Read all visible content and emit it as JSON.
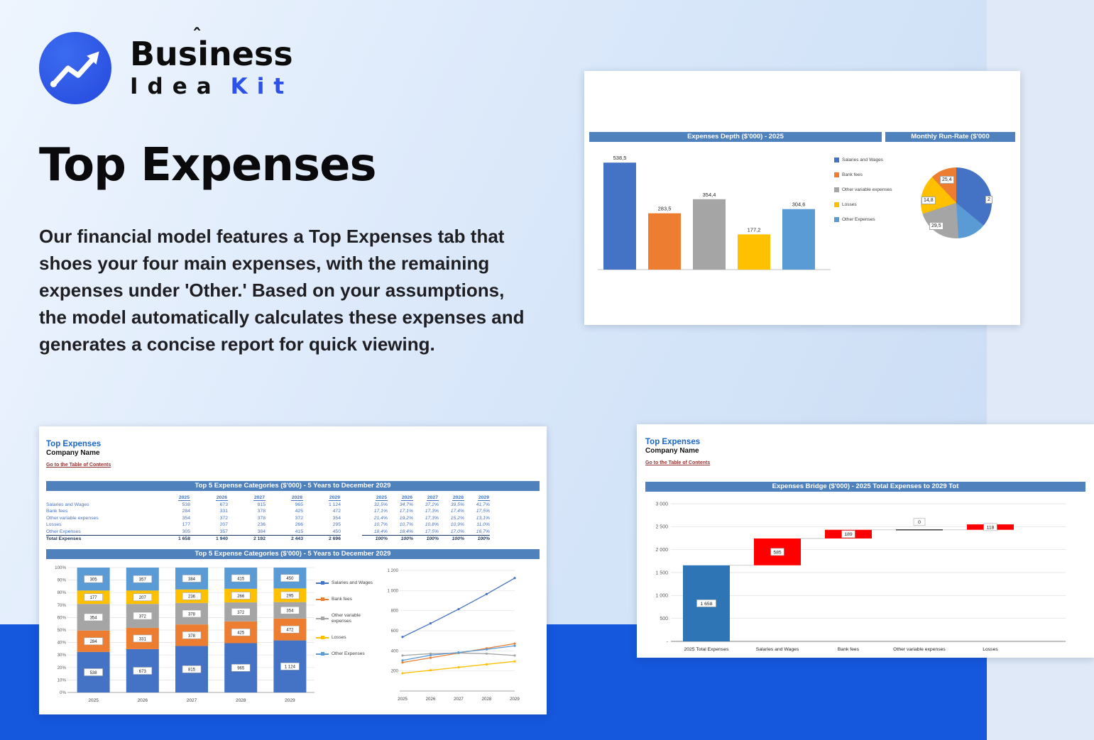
{
  "page": {
    "footer_band_color": "#1557dd",
    "accent_color": "#2d52e8",
    "header_band_color": "#4f81bd",
    "sheet_title_color": "#1a66c9",
    "link_color": "#943634"
  },
  "logo": {
    "word1": "Business",
    "caret": "ˆ",
    "word2": "Idea",
    "word3": "Kit"
  },
  "hero": {
    "title": "Top Expenses",
    "description": "Our financial model features a Top Expenses tab that shoes your four main expenses, with the remaining expenses under 'Other.' Based on your assumptions, the model automatically calculates these expenses and generates a concise report for quick viewing."
  },
  "sheet_card": {
    "sheet_title": "Top Expenses",
    "company": "Company Name",
    "toc_link": "Go to the Table of Contents"
  },
  "bridge_card": {
    "sheet_title": "Top Expenses",
    "company": "Company Name",
    "toc_link": "Go to the Table of Contents"
  },
  "chart_data": [
    {
      "id": "expenses_depth",
      "type": "bar",
      "title": "Expenses Depth ($'000) - 2025",
      "categories": [
        "Salaries and Wages",
        "Bank fees",
        "Other variable expenses",
        "Losses",
        "Other Expenses"
      ],
      "values": [
        538.5,
        283.5,
        354.4,
        177.2,
        304.6
      ],
      "value_labels": [
        "538,5",
        "283,5",
        "354,4",
        "177,2",
        "304,6"
      ],
      "colors": [
        "#4472c4",
        "#ed7d31",
        "#a5a5a5",
        "#ffc000",
        "#5b9bd5"
      ],
      "ylim": [
        0,
        600
      ],
      "grid": false,
      "legend_position": "right"
    },
    {
      "id": "monthly_run_rate",
      "type": "pie",
      "title": "Monthly Run-Rate ($'000",
      "visible_labels": [
        "25,4",
        "14,8",
        "29,5",
        "2"
      ],
      "slices_pct": [
        36,
        13,
        21,
        18,
        12
      ],
      "colors": [
        "#4472c4",
        "#5b9bd5",
        "#a5a5a5",
        "#ffc000",
        "#ed7d31"
      ]
    },
    {
      "id": "top5_table",
      "type": "table",
      "title": "Top 5 Expense Categories ($'000) - 5 Years to December 2029",
      "years": [
        "2025",
        "2026",
        "2027",
        "2028",
        "2029"
      ],
      "rows": [
        {
          "label": "Salaries and Wages",
          "values": [
            "538",
            "673",
            "815",
            "965",
            "1 124"
          ],
          "pct": [
            "32,5%",
            "34,7%",
            "37,2%",
            "39,5%",
            "41,7%"
          ]
        },
        {
          "label": "Bank fees",
          "values": [
            "284",
            "331",
            "378",
            "425",
            "472"
          ],
          "pct": [
            "17,1%",
            "17,1%",
            "17,3%",
            "17,4%",
            "17,5%"
          ]
        },
        {
          "label": "Other variable expenses",
          "values": [
            "354",
            "372",
            "378",
            "372",
            "354"
          ],
          "pct": [
            "21,4%",
            "19,2%",
            "17,3%",
            "15,2%",
            "13,1%"
          ]
        },
        {
          "label": "Losses",
          "values": [
            "177",
            "207",
            "236",
            "266",
            "295"
          ],
          "pct": [
            "10,7%",
            "10,7%",
            "10,8%",
            "10,9%",
            "11,0%"
          ]
        },
        {
          "label": "Other Expenses",
          "values": [
            "305",
            "357",
            "384",
            "415",
            "450"
          ],
          "pct": [
            "18,4%",
            "18,4%",
            "17,5%",
            "17,0%",
            "16,7%"
          ]
        }
      ],
      "total": {
        "label": "Total Expenses",
        "values": [
          "1 658",
          "1 940",
          "2 192",
          "2 443",
          "2 696"
        ],
        "pct": [
          "100%",
          "100%",
          "100%",
          "100%",
          "100%"
        ]
      }
    },
    {
      "id": "top5_stacked",
      "type": "bar",
      "stacked": "percent",
      "title": "Top 5 Expense Categories ($'000) - 5 Years to December 2029",
      "categories": [
        "2025",
        "2026",
        "2027",
        "2028",
        "2029"
      ],
      "series": [
        {
          "name": "Salaries and Wages",
          "color": "#4472c4",
          "values": [
            538,
            673,
            815,
            965,
            1124
          ],
          "labels": [
            "538",
            "673",
            "815",
            "965",
            "1 124"
          ]
        },
        {
          "name": "Bank fees",
          "color": "#ed7d31",
          "values": [
            284,
            331,
            378,
            425,
            472
          ],
          "labels": [
            "284",
            "331",
            "378",
            "425",
            "472"
          ]
        },
        {
          "name": "Other variable expenses",
          "color": "#a5a5a5",
          "values": [
            354,
            372,
            378,
            372,
            354
          ],
          "labels": [
            "354",
            "372",
            "378",
            "372",
            "354"
          ]
        },
        {
          "name": "Losses",
          "color": "#ffc000",
          "values": [
            177,
            207,
            236,
            266,
            295
          ],
          "labels": [
            "177",
            "207",
            "236",
            "266",
            "295"
          ]
        },
        {
          "name": "Other Expenses",
          "color": "#5b9bd5",
          "values": [
            305,
            357,
            384,
            415,
            450
          ],
          "labels": [
            "305",
            "357",
            "384",
            "415",
            "450"
          ]
        }
      ],
      "y_ticks": [
        "100%",
        "90%",
        "80%",
        "70%",
        "60%",
        "50%",
        "40%",
        "30%",
        "20%",
        "10%",
        "0%"
      ]
    },
    {
      "id": "top5_lines",
      "type": "line",
      "categories": [
        "2025",
        "2026",
        "2027",
        "2028",
        "2029"
      ],
      "series": [
        {
          "name": "Salaries and Wages",
          "color": "#4472c4",
          "values": [
            538,
            673,
            815,
            965,
            1124
          ]
        },
        {
          "name": "Bank fees",
          "color": "#ed7d31",
          "values": [
            284,
            331,
            378,
            425,
            472
          ]
        },
        {
          "name": "Other variable expenses",
          "color": "#a5a5a5",
          "values": [
            354,
            372,
            378,
            372,
            354
          ]
        },
        {
          "name": "Losses",
          "color": "#ffc000",
          "values": [
            177,
            207,
            236,
            266,
            295
          ]
        },
        {
          "name": "Other Expenses",
          "color": "#5b9bd5",
          "values": [
            305,
            357,
            384,
            415,
            450
          ]
        }
      ],
      "y_ticks": [
        "1 200",
        "1 000",
        "800",
        "600",
        "400",
        "200"
      ],
      "ylim": [
        0,
        1200
      ]
    },
    {
      "id": "expenses_bridge",
      "type": "waterfall",
      "title": "Expenses Bridge ($'000) - 2025 Total Expenses to 2029 Tot",
      "ylim": [
        0,
        3000
      ],
      "y_ticks": [
        "3 000",
        "2 500",
        "2 000",
        "1 500",
        "1 000",
        "500",
        "-"
      ],
      "bars": [
        {
          "category": "2025 Total Expenses",
          "label": "1 658",
          "start": 0,
          "end": 1658,
          "color": "#2e75b6",
          "kind": "total"
        },
        {
          "category": "Salaries and Wages",
          "label": "585",
          "start": 1658,
          "end": 2243,
          "color": "#ff0000",
          "kind": "increase"
        },
        {
          "category": "Bank fees",
          "label": "189",
          "start": 2243,
          "end": 2432,
          "color": "#ff0000",
          "kind": "increase"
        },
        {
          "category": "Other variable expenses",
          "label": "0",
          "start": 2432,
          "end": 2432,
          "color": "#404040",
          "kind": "zero"
        },
        {
          "category": "Losses",
          "label": "118",
          "start": 2432,
          "end": 2550,
          "color": "#ff0000",
          "kind": "increase"
        }
      ]
    }
  ]
}
